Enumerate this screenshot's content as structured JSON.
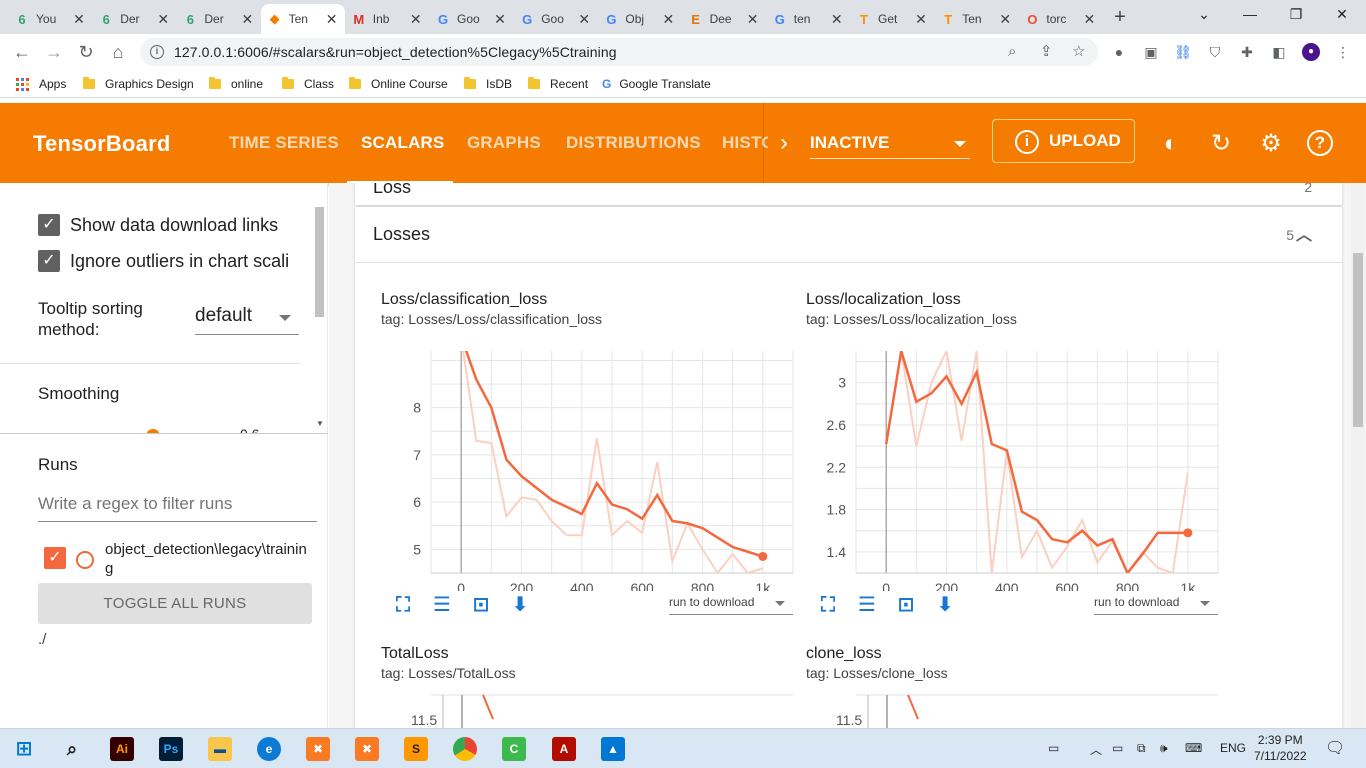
{
  "browser": {
    "tabs": [
      {
        "title": "You",
        "favicon_char": "6",
        "favicon_color": "#30a46c"
      },
      {
        "title": "Der",
        "favicon_char": "6",
        "favicon_color": "#30a46c"
      },
      {
        "title": "Der",
        "favicon_char": "6",
        "favicon_color": "#30a46c"
      },
      {
        "title": "Ten",
        "favicon_char": "◆",
        "favicon_color": "#f57c00"
      },
      {
        "title": "Inb",
        "favicon_char": "M",
        "favicon_color": "#d93025"
      },
      {
        "title": "Goo",
        "favicon_char": "G",
        "favicon_color": "#4285f4"
      },
      {
        "title": "Goo",
        "favicon_char": "G",
        "favicon_color": "#4285f4"
      },
      {
        "title": "Obj",
        "favicon_char": "G",
        "favicon_color": "#4285f4"
      },
      {
        "title": "Dee",
        "favicon_char": "E",
        "favicon_color": "#e37400"
      },
      {
        "title": "ten",
        "favicon_char": "G",
        "favicon_color": "#4285f4"
      },
      {
        "title": "Get",
        "favicon_char": "T",
        "favicon_color": "#ff8f00"
      },
      {
        "title": "Ten",
        "favicon_char": "T",
        "favicon_color": "#ff8f00"
      },
      {
        "title": "torc",
        "favicon_char": "O",
        "favicon_color": "#ee4c2c"
      }
    ],
    "url": "127.0.0.1:6006/#scalars&run=object_detection%5Clegacy%5Ctraining",
    "bookmarks": [
      "Apps",
      "Graphics Design",
      "online",
      "Class",
      "Online Course",
      "IsDB",
      "Recent",
      "Google Translate"
    ]
  },
  "tensorboard": {
    "title": "TensorBoard",
    "nav_tabs": [
      "TIME SERIES",
      "SCALARS",
      "GRAPHS",
      "DISTRIBUTIONS",
      "HISTO"
    ],
    "status_dropdown": "INACTIVE",
    "upload_label": "UPLOAD",
    "accent_color": "#f57c00"
  },
  "sidebar": {
    "show_download_links": "Show data download links",
    "ignore_outliers": "Ignore outliers in chart scali",
    "tooltip_sorting_label": "Tooltip sorting method:",
    "tooltip_sorting_value": "default",
    "smoothing_label": "Smoothing",
    "smoothing_value": "0.6",
    "runs_label": "Runs",
    "filter_placeholder": "Write a regex to filter runs",
    "run_name": "object_detection\\legacy\\training",
    "toggle_all": "TOGGLE ALL RUNS",
    "root_dir": "./"
  },
  "main": {
    "prev_group_name": "Loss",
    "prev_group_count": "2",
    "group_name": "Losses",
    "group_count": "5",
    "run_to_download": "run to download",
    "charts": [
      {
        "title": "Loss/classification_loss",
        "tag": "tag: Losses/Loss/classification_loss"
      },
      {
        "title": "Loss/localization_loss",
        "tag": "tag: Losses/Loss/localization_loss"
      },
      {
        "title": "TotalLoss",
        "tag": "tag: Losses/TotalLoss"
      },
      {
        "title": "clone_loss",
        "tag": "tag: Losses/clone_loss"
      }
    ]
  },
  "chart_data": [
    {
      "type": "line",
      "title": "Loss/classification_loss",
      "x_ticks": [
        "0",
        "200",
        "400",
        "600",
        "800",
        "1k"
      ],
      "y_ticks": [
        "5",
        "6",
        "7",
        "8"
      ],
      "xlim": [
        -100,
        1100
      ],
      "ylim": [
        4.5,
        9.2
      ],
      "series": [
        {
          "name": "smoothed",
          "color": "#f4683e",
          "x": [
            0,
            50,
            100,
            150,
            200,
            250,
            300,
            350,
            400,
            450,
            500,
            550,
            600,
            650,
            700,
            750,
            800,
            850,
            900,
            950,
            1000
          ],
          "y": [
            9.5,
            8.6,
            8.0,
            6.9,
            6.55,
            6.3,
            6.05,
            5.9,
            5.75,
            6.4,
            5.95,
            5.85,
            5.65,
            6.15,
            5.6,
            5.55,
            5.45,
            5.25,
            5.05,
            4.95,
            4.85
          ]
        },
        {
          "name": "raw",
          "color": "#fbd0c1",
          "x": [
            0,
            50,
            100,
            150,
            200,
            250,
            300,
            350,
            400,
            450,
            500,
            550,
            600,
            650,
            700,
            750,
            800,
            850,
            900,
            950,
            1000
          ],
          "y": [
            9.5,
            7.3,
            7.25,
            5.7,
            6.1,
            6.05,
            5.6,
            5.3,
            5.3,
            7.35,
            5.3,
            5.6,
            5.35,
            6.85,
            4.75,
            5.55,
            5.0,
            4.5,
            4.9,
            4.5,
            4.6
          ]
        }
      ]
    },
    {
      "type": "line",
      "title": "Loss/localization_loss",
      "x_ticks": [
        "0",
        "200",
        "400",
        "600",
        "800",
        "1k"
      ],
      "y_ticks": [
        "1.4",
        "1.8",
        "2.2",
        "2.6",
        "3"
      ],
      "xlim": [
        -100,
        1100
      ],
      "ylim": [
        1.2,
        3.3
      ],
      "series": [
        {
          "name": "smoothed",
          "color": "#f4683e",
          "x": [
            0,
            50,
            100,
            150,
            200,
            250,
            300,
            350,
            400,
            450,
            500,
            550,
            600,
            650,
            700,
            750,
            800,
            850,
            900,
            950,
            1000
          ],
          "y": [
            2.42,
            3.3,
            2.82,
            2.9,
            3.06,
            2.8,
            3.1,
            2.42,
            2.36,
            1.78,
            1.7,
            1.52,
            1.49,
            1.6,
            1.46,
            1.52,
            1.2,
            1.38,
            1.58,
            1.58,
            1.58
          ]
        },
        {
          "name": "raw",
          "color": "#fbd0c1",
          "x": [
            0,
            50,
            100,
            150,
            200,
            250,
            300,
            350,
            400,
            450,
            500,
            550,
            600,
            650,
            700,
            750,
            800,
            850,
            900,
            950,
            1000
          ],
          "y": [
            2.42,
            3.3,
            2.4,
            3.0,
            3.3,
            2.45,
            3.3,
            1.2,
            2.35,
            1.35,
            1.6,
            1.25,
            1.45,
            1.7,
            1.3,
            1.5,
            1.2,
            1.4,
            1.25,
            1.2,
            2.15
          ]
        }
      ]
    }
  ],
  "taskbar": {
    "time": "2:39 PM",
    "date": "7/11/2022",
    "language": "ENG"
  }
}
